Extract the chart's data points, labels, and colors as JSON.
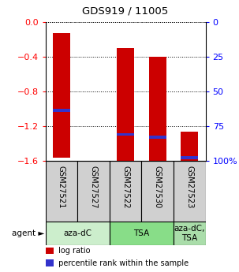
{
  "title": "GDS919 / 11005",
  "samples": [
    "GSM27521",
    "GSM27527",
    "GSM27522",
    "GSM27530",
    "GSM27523"
  ],
  "bar_bottom": [
    -1.57,
    0.0,
    -1.62,
    -1.6,
    -1.6
  ],
  "bar_top": [
    -0.13,
    0.0,
    -0.3,
    -0.4,
    -1.27
  ],
  "blue_y": [
    -1.02,
    0.0,
    -1.3,
    -1.33,
    -1.57
  ],
  "has_bar": [
    true,
    false,
    true,
    true,
    true
  ],
  "ylim": [
    -1.6,
    0.0
  ],
  "left_ticks": [
    0,
    -0.4,
    -0.8,
    -1.2,
    -1.6
  ],
  "right_ticks": [
    0,
    25,
    50,
    75,
    100
  ],
  "agent_groups": [
    {
      "label": "aza-dC",
      "cols": [
        0,
        1
      ],
      "color": "#cceecc"
    },
    {
      "label": "TSA",
      "cols": [
        2,
        3
      ],
      "color": "#88dd88"
    },
    {
      "label": "aza-dC,\nTSA",
      "cols": [
        4
      ],
      "color": "#aaddaa"
    }
  ],
  "bar_color": "#cc0000",
  "blue_color": "#3333cc",
  "bar_width": 0.55,
  "legend_items": [
    {
      "color": "#cc0000",
      "label": " log ratio"
    },
    {
      "color": "#3333cc",
      "label": " percentile rank within the sample"
    }
  ]
}
